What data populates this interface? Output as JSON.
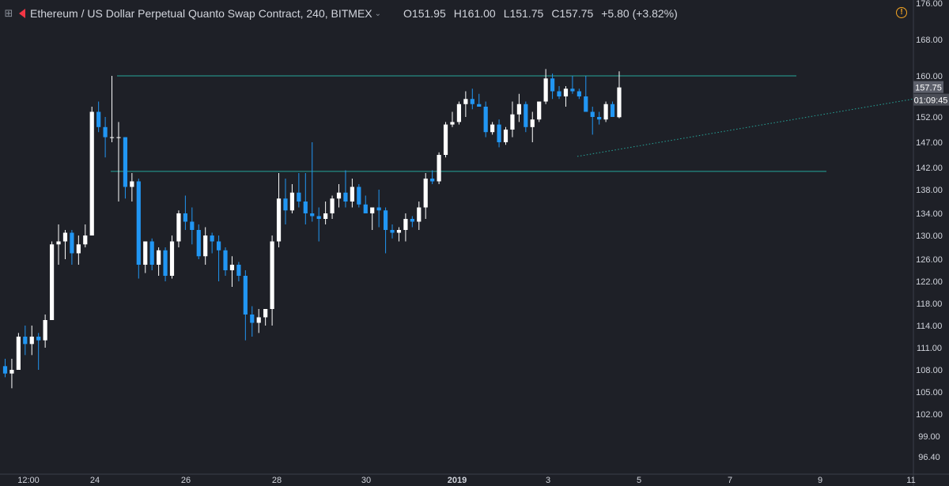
{
  "header": {
    "symbol": "Ethereum / US Dollar Perpetual Quanto Swap Contract, 240, BITMEX",
    "open": "O151.95",
    "high": "H161.00",
    "low": "L151.75",
    "close": "C157.75",
    "change": "+5.80 (+3.82%)"
  },
  "colors": {
    "background": "#1e2027",
    "up_candle": "#ffffff",
    "down_candle": "#2196f3",
    "level_line": "#26a69a",
    "axis_text": "#d1d4dc",
    "alert": "#f5a623"
  },
  "icons": {
    "expand": "expand-icon",
    "flag": "flag-icon",
    "alert": "alert-icon"
  },
  "chart_data": {
    "type": "candlestick",
    "y_axis": {
      "ticks": [
        "176.00",
        "168.00",
        "160.00",
        "152.00",
        "147.00",
        "142.00",
        "138.00",
        "134.00",
        "130.00",
        "126.00",
        "122.00",
        "118.00",
        "114.00",
        "111.00",
        "108.00",
        "105.00",
        "102.00",
        "99.00",
        "96.40"
      ],
      "ylim": [
        96.4,
        176
      ]
    },
    "x_axis": {
      "tick_labels": [
        "12:00",
        "24",
        "26",
        "28",
        "30",
        "2019",
        "3",
        "5",
        "7",
        "9",
        "11"
      ]
    },
    "last_price": "157.75",
    "countdown": "01:09:45",
    "horizontal_levels": [
      {
        "value": 160,
        "from": "Dec 24",
        "to": "Jan 8"
      },
      {
        "value": 141.3,
        "from": "Dec 24",
        "to": "Jan 9"
      }
    ],
    "trendline": {
      "from_value": 144.2,
      "to_value": 155.5,
      "style": "dotted"
    },
    "ohlc": [
      [
        108.5,
        109.5,
        107.0,
        107.5
      ],
      [
        107.5,
        109.5,
        105.5,
        108.0
      ],
      [
        108.0,
        113.0,
        108.0,
        112.5
      ],
      [
        112.5,
        114.0,
        110.0,
        111.5
      ],
      [
        111.5,
        114.0,
        110.0,
        112.5
      ],
      [
        112.5,
        113.0,
        108.0,
        112.0
      ],
      [
        112.0,
        116.0,
        111.0,
        115.0
      ],
      [
        115.0,
        129.0,
        115.0,
        128.5
      ],
      [
        128.5,
        132.0,
        125.0,
        129.0
      ],
      [
        129.0,
        131.0,
        126.0,
        130.5
      ],
      [
        130.5,
        131.0,
        125.0,
        127.0
      ],
      [
        127.0,
        130.0,
        125.0,
        128.5
      ],
      [
        128.5,
        132.0,
        128.0,
        130.0
      ],
      [
        130.0,
        154.0,
        130.0,
        153.0
      ],
      [
        153.0,
        155.0,
        149.0,
        150.0
      ],
      [
        150.0,
        152.0,
        144.0,
        148.0
      ],
      [
        148.0,
        160.0,
        147.0,
        148.0
      ],
      [
        148.0,
        151.0,
        136.0,
        148.0
      ],
      [
        148.0,
        148.0,
        136.5,
        138.5
      ],
      [
        138.5,
        141.0,
        136.0,
        139.5
      ],
      [
        139.5,
        140.0,
        122.5,
        125.0
      ],
      [
        125.0,
        129.0,
        123.5,
        129.0
      ],
      [
        129.0,
        129.5,
        124.0,
        125.0
      ],
      [
        125.0,
        128.0,
        123.0,
        127.5
      ],
      [
        127.5,
        128.0,
        122.0,
        123.0
      ],
      [
        123.0,
        130.0,
        122.5,
        129.0
      ],
      [
        129.0,
        134.5,
        128.0,
        134.0
      ],
      [
        134.0,
        137.0,
        131.0,
        132.5
      ],
      [
        132.5,
        135.0,
        128.5,
        131.0
      ],
      [
        131.0,
        132.0,
        126.0,
        126.5
      ],
      [
        126.5,
        131.5,
        125.0,
        130.0
      ],
      [
        130.0,
        130.5,
        127.0,
        129.0
      ],
      [
        129.0,
        130.0,
        122.0,
        127.5
      ],
      [
        127.5,
        128.0,
        123.0,
        124.0
      ],
      [
        124.0,
        126.5,
        121.0,
        125.0
      ],
      [
        125.0,
        125.5,
        122.0,
        123.0
      ],
      [
        123.0,
        124.0,
        112.0,
        116.0
      ],
      [
        116.0,
        117.5,
        112.5,
        114.5
      ],
      [
        114.5,
        117.0,
        113.0,
        115.5
      ],
      [
        115.5,
        117.0,
        114.0,
        117.0
      ],
      [
        117.0,
        130.0,
        114.0,
        129.0
      ],
      [
        129.0,
        141.0,
        128.0,
        136.5
      ],
      [
        136.5,
        140.0,
        132.0,
        134.5
      ],
      [
        134.5,
        139.0,
        134.0,
        137.5
      ],
      [
        137.5,
        141.0,
        135.0,
        136.0
      ],
      [
        136.0,
        141.0,
        132.0,
        134.0
      ],
      [
        134.0,
        147.0,
        132.5,
        133.5
      ],
      [
        133.5,
        135.0,
        129.0,
        133.0
      ],
      [
        133.0,
        136.0,
        132.0,
        134.0
      ],
      [
        134.0,
        137.0,
        133.0,
        136.5
      ],
      [
        136.5,
        139.0,
        135.0,
        137.5
      ],
      [
        137.5,
        141.5,
        135.0,
        136.0
      ],
      [
        136.0,
        140.0,
        135.0,
        138.5
      ],
      [
        138.5,
        139.0,
        135.0,
        135.5
      ],
      [
        135.5,
        137.0,
        134.0,
        134.0
      ],
      [
        134.0,
        135.0,
        131.0,
        135.0
      ],
      [
        135.0,
        138.0,
        131.5,
        134.5
      ],
      [
        134.5,
        135.0,
        127.0,
        131.0
      ],
      [
        131.0,
        132.0,
        129.5,
        130.5
      ],
      [
        130.5,
        131.5,
        129.0,
        131.0
      ],
      [
        131.0,
        134.0,
        129.0,
        133.0
      ],
      [
        133.0,
        133.5,
        131.5,
        132.5
      ],
      [
        132.5,
        136.0,
        131.0,
        135.0
      ],
      [
        135.0,
        141.0,
        133.0,
        140.0
      ],
      [
        140.0,
        141.5,
        139.0,
        139.5
      ],
      [
        139.5,
        145.0,
        139.0,
        144.5
      ],
      [
        144.5,
        151.0,
        144.0,
        150.5
      ],
      [
        150.5,
        153.0,
        150.0,
        151.0
      ],
      [
        151.0,
        155.0,
        150.5,
        154.5
      ],
      [
        154.5,
        157.0,
        152.0,
        155.5
      ],
      [
        155.5,
        157.5,
        153.5,
        154.5
      ],
      [
        154.5,
        156.5,
        154.0,
        154.0
      ],
      [
        154.0,
        155.0,
        148.0,
        149.0
      ],
      [
        149.0,
        151.0,
        148.5,
        150.5
      ],
      [
        150.5,
        151.5,
        146.0,
        147.0
      ],
      [
        147.0,
        150.0,
        146.5,
        149.5
      ],
      [
        149.5,
        155.0,
        148.0,
        152.5
      ],
      [
        152.5,
        156.5,
        151.0,
        154.5
      ],
      [
        154.5,
        155.0,
        149.0,
        150.0
      ],
      [
        150.0,
        153.0,
        147.0,
        151.5
      ],
      [
        151.5,
        155.0,
        151.0,
        155.0
      ],
      [
        155.0,
        161.5,
        154.5,
        159.5
      ],
      [
        159.5,
        160.5,
        155.5,
        157.0
      ],
      [
        157.0,
        158.0,
        155.5,
        156.0
      ],
      [
        156.0,
        158.0,
        154.0,
        157.5
      ],
      [
        157.5,
        160.0,
        156.5,
        157.0
      ],
      [
        157.0,
        157.5,
        155.5,
        156.0
      ],
      [
        156.0,
        160.0,
        153.0,
        153.0
      ],
      [
        153.0,
        154.0,
        148.5,
        152.0
      ],
      [
        152.0,
        153.0,
        150.5,
        151.5
      ],
      [
        151.5,
        155.0,
        151.0,
        154.5
      ],
      [
        154.5,
        155.0,
        152.0,
        152.0
      ],
      [
        151.95,
        161.0,
        151.75,
        157.75
      ]
    ]
  }
}
